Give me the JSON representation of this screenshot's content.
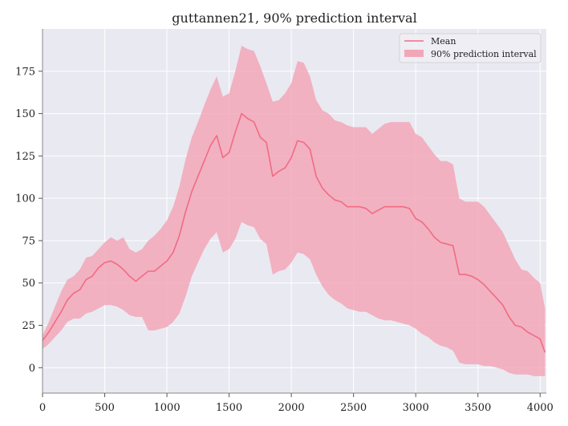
{
  "chart_data": {
    "type": "area",
    "title": "guttannen21, 90% prediction interval",
    "xlabel": "",
    "ylabel": "",
    "xlim": [
      0,
      4050
    ],
    "ylim": [
      -15,
      200
    ],
    "x_ticks": [
      0,
      500,
      1000,
      1500,
      2000,
      2500,
      3000,
      3500,
      4000
    ],
    "y_ticks": [
      0,
      25,
      50,
      75,
      100,
      125,
      150,
      175
    ],
    "grid": true,
    "legend_position": "top-right",
    "colors": {
      "mean": "#f26b83",
      "band": "#f2a7b8",
      "background": "#e9e9f1",
      "grid": "#ffffff"
    },
    "series": [
      {
        "name": "Mean",
        "kind": "line",
        "x": [
          0,
          50,
          100,
          150,
          200,
          250,
          300,
          350,
          400,
          450,
          500,
          550,
          600,
          650,
          700,
          750,
          800,
          850,
          900,
          950,
          1000,
          1050,
          1100,
          1150,
          1200,
          1250,
          1300,
          1350,
          1400,
          1450,
          1500,
          1550,
          1600,
          1650,
          1700,
          1750,
          1800,
          1850,
          1900,
          1950,
          2000,
          2050,
          2100,
          2150,
          2200,
          2250,
          2300,
          2350,
          2400,
          2450,
          2500,
          2550,
          2600,
          2650,
          2700,
          2750,
          2800,
          2850,
          2900,
          2950,
          3000,
          3050,
          3100,
          3150,
          3200,
          3250,
          3300,
          3350,
          3400,
          3450,
          3500,
          3550,
          3600,
          3650,
          3700,
          3750,
          3800,
          3850,
          3900,
          3950,
          4000,
          4040
        ],
        "y": [
          16,
          21,
          27,
          33,
          40,
          44,
          46,
          52,
          54,
          59,
          62,
          63,
          61,
          58,
          54,
          51,
          54,
          57,
          57,
          60,
          63,
          68,
          78,
          92,
          104,
          113,
          122,
          131,
          137,
          124,
          127,
          139,
          150,
          147,
          145,
          136,
          133,
          113,
          116,
          118,
          124,
          134,
          133,
          129,
          113,
          106,
          102,
          99,
          98,
          95,
          95,
          95,
          94,
          91,
          93,
          95,
          95,
          95,
          95,
          94,
          88,
          86,
          82,
          77,
          74,
          73,
          72,
          55,
          55,
          54,
          52,
          49,
          45,
          41,
          37,
          30,
          25,
          24,
          21,
          19,
          17,
          9
        ]
      },
      {
        "name": "90% prediction interval",
        "kind": "band",
        "x": [
          0,
          50,
          100,
          150,
          200,
          250,
          300,
          350,
          400,
          450,
          500,
          550,
          600,
          650,
          700,
          750,
          800,
          850,
          900,
          950,
          1000,
          1050,
          1100,
          1150,
          1200,
          1250,
          1300,
          1350,
          1400,
          1450,
          1500,
          1550,
          1600,
          1650,
          1700,
          1750,
          1800,
          1850,
          1900,
          1950,
          2000,
          2050,
          2100,
          2150,
          2200,
          2250,
          2300,
          2350,
          2400,
          2450,
          2500,
          2550,
          2600,
          2650,
          2700,
          2750,
          2800,
          2850,
          2900,
          2950,
          3000,
          3050,
          3100,
          3150,
          3200,
          3250,
          3300,
          3350,
          3400,
          3450,
          3500,
          3550,
          3600,
          3650,
          3700,
          3750,
          3800,
          3850,
          3900,
          3950,
          4000,
          4040
        ],
        "lower": [
          11,
          14,
          18,
          22,
          27,
          29,
          29,
          32,
          33,
          35,
          37,
          37,
          36,
          34,
          31,
          30,
          30,
          22,
          22,
          23,
          24,
          27,
          32,
          42,
          54,
          62,
          70,
          76,
          80,
          68,
          70,
          76,
          86,
          84,
          83,
          76,
          73,
          55,
          57,
          58,
          62,
          68,
          67,
          64,
          55,
          48,
          43,
          40,
          38,
          35,
          34,
          33,
          33,
          31,
          29,
          28,
          28,
          27,
          26,
          25,
          23,
          20,
          18,
          15,
          13,
          12,
          10,
          3,
          2,
          2,
          2,
          1,
          1,
          0,
          -1,
          -3,
          -4,
          -4,
          -4,
          -5,
          -5,
          -5
        ],
        "upper": [
          19,
          27,
          36,
          45,
          52,
          54,
          58,
          65,
          66,
          70,
          74,
          77,
          75,
          77,
          70,
          68,
          70,
          75,
          78,
          82,
          87,
          95,
          107,
          123,
          136,
          145,
          155,
          164,
          172,
          160,
          162,
          175,
          190,
          188,
          187,
          178,
          168,
          157,
          158,
          162,
          168,
          181,
          180,
          172,
          158,
          152,
          150,
          146,
          145,
          143,
          142,
          142,
          142,
          138,
          141,
          144,
          145,
          145,
          145,
          145,
          138,
          136,
          131,
          126,
          122,
          122,
          120,
          100,
          98,
          98,
          98,
          95,
          90,
          85,
          80,
          72,
          64,
          58,
          57,
          53,
          50,
          35
        ]
      }
    ]
  }
}
